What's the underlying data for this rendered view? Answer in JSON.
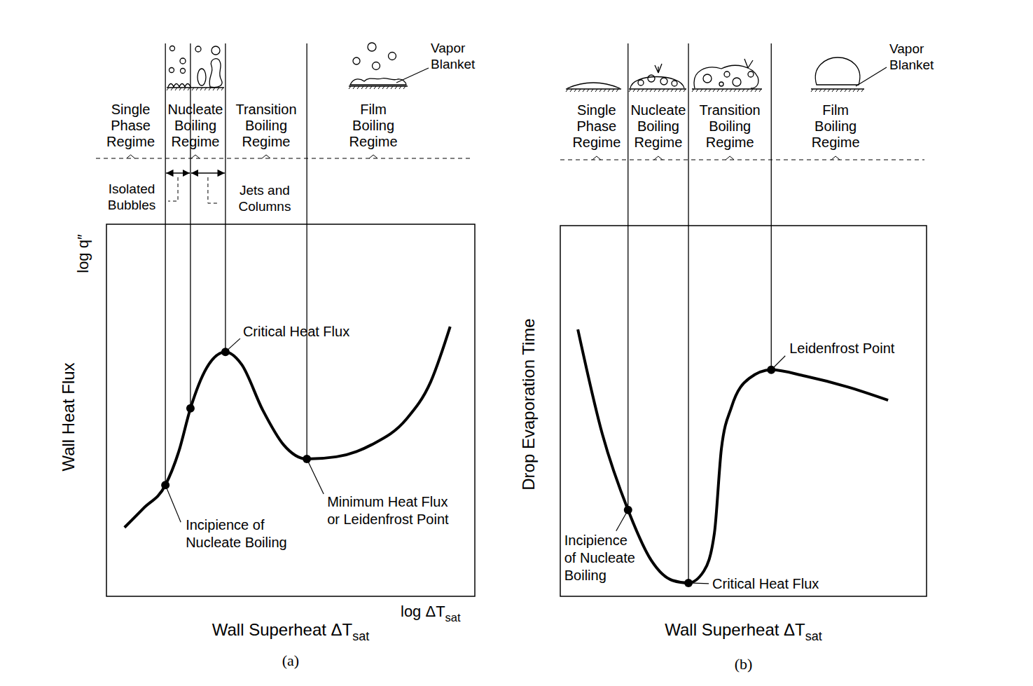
{
  "chart_data": [
    {
      "type": "line",
      "panel": "(a)",
      "y_label": "Wall Heat Flux",
      "y_scale_label": "log q″",
      "x_label": {
        "text": "Wall Superheat ΔT",
        "sub": "sat"
      },
      "x_scale_label": {
        "text": "log ΔT",
        "sub": "sat"
      },
      "xlim": [
        0,
        100
      ],
      "ylim": [
        0,
        100
      ],
      "tick_labels": false,
      "color": "#000000",
      "line_style": "solid",
      "x": [
        4.9,
        10.1,
        16.0,
        19.6,
        22.8,
        27.2,
        32.3,
        36.7,
        42.4,
        48.1,
        54.4,
        62.4,
        71.9,
        81.4,
        88.0,
        93.3
      ],
      "values": [
        18.5,
        23.7,
        29.9,
        38.8,
        50.5,
        61.4,
        65.7,
        62.3,
        50.1,
        40.7,
        36.9,
        37.5,
        40.7,
        47.6,
        57.6,
        72.5
      ],
      "points": [
        {
          "x": 16.0,
          "y": 29.9,
          "label": [
            "Incipience of",
            "Nucleate Boiling"
          ]
        },
        {
          "x": 22.8,
          "y": 50.5
        },
        {
          "x": 32.3,
          "y": 65.7,
          "label": [
            "Critical Heat Flux"
          ]
        },
        {
          "x": 54.4,
          "y": 36.9,
          "label": [
            "Minimum Heat Flux",
            "or Leidenfrost Point"
          ]
        }
      ],
      "regimes": [
        {
          "label": [
            "Single",
            "Phase",
            "Regime"
          ]
        },
        {
          "label": [
            "Nucleate",
            "Boiling",
            "Regime"
          ],
          "sub_regimes": [
            [
              "Isolated",
              "Bubbles"
            ],
            [
              "Jets and",
              "Columns"
            ]
          ]
        },
        {
          "label": [
            "Transition",
            "Boiling",
            "Regime"
          ]
        },
        {
          "label": [
            "Film",
            "Boiling",
            "Regime"
          ],
          "callout": [
            "Vapor",
            "Blanket"
          ]
        }
      ]
    },
    {
      "type": "line",
      "panel": "(b)",
      "y_label": "Drop Evaporation Time",
      "x_label": {
        "text": "Wall Superheat ΔT",
        "sub": "sat"
      },
      "xlim": [
        0,
        100
      ],
      "ylim": [
        0,
        100
      ],
      "tick_labels": false,
      "color": "#000000",
      "line_style": "solid",
      "x": [
        4.8,
        11.5,
        18.5,
        24.9,
        30.6,
        35.0,
        39.2,
        42.1,
        44.0,
        46.8,
        51.6,
        57.6,
        66.9,
        78.4,
        89.5
      ],
      "values": [
        72.0,
        43.7,
        23.3,
        9.6,
        4.3,
        3.6,
        6.8,
        17.2,
        39.9,
        51.2,
        58.8,
        61.1,
        59.4,
        56.5,
        52.9
      ],
      "points": [
        {
          "x": 18.5,
          "y": 23.3,
          "label": [
            "Incipience",
            "of Nucleate",
            "Boiling"
          ]
        },
        {
          "x": 35.0,
          "y": 3.6,
          "label": [
            "Critical Heat Flux"
          ]
        },
        {
          "x": 57.6,
          "y": 61.1,
          "label": [
            "Leidenfrost Point"
          ]
        }
      ],
      "regimes": [
        {
          "label": [
            "Single",
            "Phase",
            "Regime"
          ]
        },
        {
          "label": [
            "Nucleate",
            "Boiling",
            "Regime"
          ]
        },
        {
          "label": [
            "Transition",
            "Boiling",
            "Regime"
          ]
        },
        {
          "label": [
            "Film",
            "Boiling",
            "Regime"
          ],
          "callout": [
            "Vapor",
            "Blanket"
          ]
        }
      ]
    }
  ]
}
